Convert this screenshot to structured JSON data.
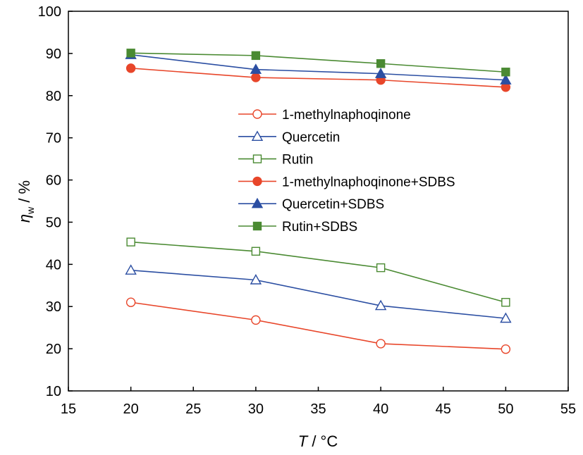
{
  "chart_data": {
    "type": "line",
    "title": "",
    "xlabel": {
      "var": "T",
      "unit": " / °C"
    },
    "ylabel": {
      "var": "η",
      "sub": "w",
      "unit": "  / %"
    },
    "xlim": [
      15,
      55
    ],
    "ylim": [
      10,
      100
    ],
    "xticks": [
      15,
      20,
      25,
      30,
      35,
      40,
      45,
      50,
      55
    ],
    "yticks": [
      10,
      20,
      30,
      40,
      50,
      60,
      70,
      80,
      90,
      100
    ],
    "grid": false,
    "legend_position": "center",
    "x": [
      20,
      30,
      40,
      50
    ],
    "series": [
      {
        "name": "1-methylnaphoqinone",
        "values": [
          31.0,
          26.8,
          21.2,
          19.9
        ],
        "color": "#e8462a",
        "marker": "circle",
        "filled": false
      },
      {
        "name": "Quercetin",
        "values": [
          38.6,
          36.3,
          30.2,
          27.2
        ],
        "color": "#2b4ea2",
        "marker": "triangle",
        "filled": false
      },
      {
        "name": "Rutin",
        "values": [
          45.3,
          43.1,
          39.2,
          31.0
        ],
        "color": "#4a8a32",
        "marker": "square",
        "filled": false
      },
      {
        "name": "1-methylnaphoqinone+SDBS",
        "values": [
          86.5,
          84.3,
          83.7,
          82.0
        ],
        "color": "#e8462a",
        "marker": "circle",
        "filled": true
      },
      {
        "name": "Quercetin+SDBS",
        "values": [
          89.7,
          86.2,
          85.2,
          83.7
        ],
        "color": "#2b4ea2",
        "marker": "triangle",
        "filled": true
      },
      {
        "name": "Rutin+SDBS",
        "values": [
          90.1,
          89.5,
          87.6,
          85.6
        ],
        "color": "#4a8a32",
        "marker": "square",
        "filled": true
      }
    ]
  }
}
